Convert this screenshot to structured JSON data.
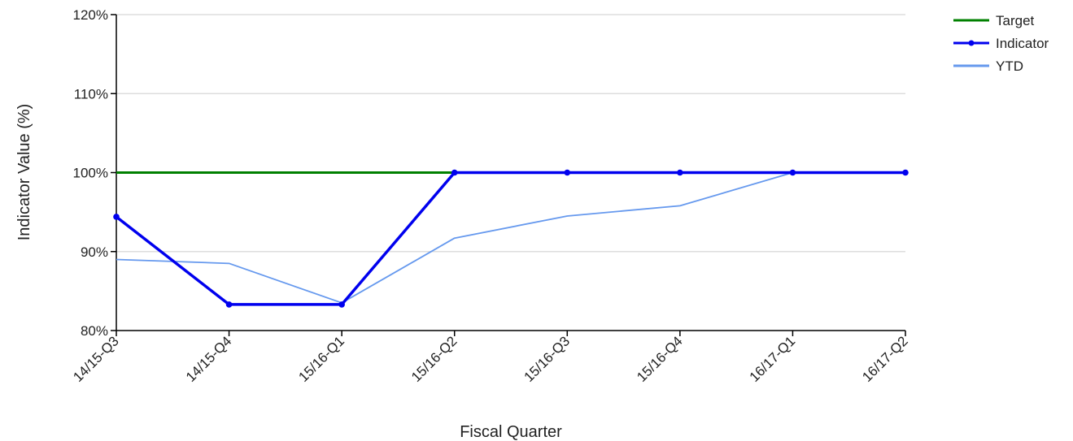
{
  "chart_data": {
    "type": "line",
    "title": "",
    "xlabel": "Fiscal Quarter",
    "ylabel": "Indicator Value (%)",
    "categories": [
      "14/15-Q3",
      "14/15-Q4",
      "15/16-Q1",
      "15/16-Q2",
      "15/16-Q3",
      "15/16-Q4",
      "16/17-Q1",
      "16/17-Q2"
    ],
    "ylim": [
      80,
      120
    ],
    "yticks": [
      80,
      90,
      100,
      110,
      120
    ],
    "ytick_labels": [
      "80%",
      "90%",
      "100%",
      "110%",
      "120%"
    ],
    "grid": true,
    "legend_position": "top-right",
    "series": [
      {
        "name": "Target",
        "color": "#008000",
        "markers": false,
        "values": [
          100,
          100,
          100,
          100,
          100,
          100,
          100,
          100
        ]
      },
      {
        "name": "Indicator",
        "color": "#0000ee",
        "markers": true,
        "values": [
          94.4,
          83.3,
          83.3,
          100,
          100,
          100,
          100,
          100
        ]
      },
      {
        "name": "YTD",
        "color": "#6699ee",
        "markers": false,
        "values": [
          89.0,
          88.5,
          83.5,
          91.7,
          94.5,
          95.8,
          100,
          100
        ]
      }
    ]
  }
}
